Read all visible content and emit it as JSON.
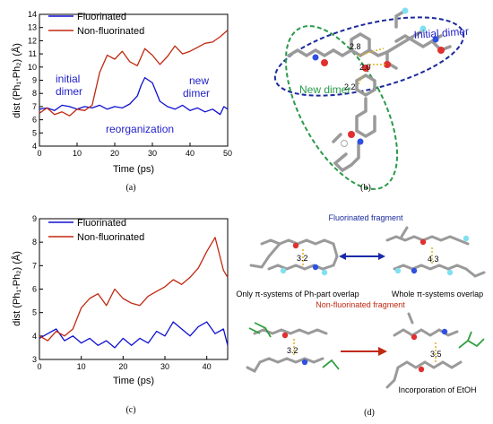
{
  "chart_data": [
    {
      "type": "line",
      "panel": "(a)",
      "xlabel": "Time (ps)",
      "ylabel": "dist (Ph₁-Ph₂) (Å)",
      "xlim": [
        0,
        50
      ],
      "ylim": [
        4,
        14
      ],
      "xticks": [
        "0",
        "10",
        "20",
        "30",
        "40",
        "50"
      ],
      "yticks": [
        "4",
        "5",
        "6",
        "7",
        "8",
        "9",
        "10",
        "11",
        "12",
        "13",
        "14"
      ],
      "legend_position": "top-left",
      "series": [
        {
          "name": "Fluorinated",
          "color": "#1010d0",
          "x": [
            0,
            2,
            4,
            6,
            8,
            10,
            12,
            14,
            16,
            18,
            20,
            22,
            24,
            26,
            27,
            28,
            30,
            32,
            34,
            36,
            38,
            40,
            42,
            44,
            46,
            48,
            49,
            50
          ],
          "y": [
            6.8,
            6.9,
            6.7,
            7.1,
            7.0,
            6.8,
            7.0,
            6.9,
            7.1,
            6.8,
            7.0,
            6.9,
            7.2,
            7.8,
            8.6,
            9.2,
            8.8,
            7.4,
            7.0,
            6.8,
            7.1,
            6.7,
            6.9,
            6.6,
            6.8,
            6.4,
            7.0,
            6.8
          ]
        },
        {
          "name": "Non-fluorinated",
          "color": "#c02810",
          "x": [
            0,
            2,
            4,
            6,
            8,
            10,
            12,
            14,
            16,
            18,
            20,
            22,
            24,
            26,
            28,
            30,
            32,
            34,
            36,
            38,
            40,
            42,
            44,
            46,
            48,
            50
          ],
          "y": [
            6.5,
            6.9,
            6.4,
            6.6,
            6.3,
            6.8,
            6.7,
            7.1,
            9.6,
            10.9,
            10.6,
            11.2,
            10.4,
            10.1,
            11.4,
            10.9,
            10.2,
            10.8,
            11.6,
            11.0,
            11.2,
            11.5,
            11.8,
            11.9,
            12.3,
            12.8
          ]
        }
      ],
      "annotations": [
        {
          "text": "initial",
          "color": "#1f1fc8"
        },
        {
          "text": "dimer",
          "color": "#1f1fc8"
        },
        {
          "text": "reorganization",
          "color": "#1f1fc8"
        },
        {
          "text": "new",
          "color": "#1f1fc8"
        },
        {
          "text": "dimer",
          "color": "#1f1fc8"
        }
      ]
    },
    {
      "type": "line",
      "panel": "(c)",
      "xlabel": "Time (ps)",
      "ylabel": "dist (Ph₁-Ph₂) (Å)",
      "xlim": [
        0,
        45
      ],
      "ylim": [
        3,
        9
      ],
      "xticks": [
        "0",
        "10",
        "20",
        "30",
        "40"
      ],
      "yticks": [
        "3",
        "4",
        "5",
        "6",
        "7",
        "8",
        "9"
      ],
      "legend_position": "top-left",
      "series": [
        {
          "name": "Fluorinated",
          "color": "#1010d0",
          "x": [
            0,
            2,
            4,
            6,
            8,
            10,
            12,
            14,
            16,
            18,
            20,
            22,
            24,
            26,
            28,
            30,
            32,
            34,
            36,
            38,
            40,
            42,
            44,
            45
          ],
          "y": [
            3.9,
            4.1,
            4.3,
            3.8,
            4.0,
            3.7,
            3.9,
            3.6,
            3.8,
            3.5,
            3.9,
            3.6,
            3.9,
            3.7,
            4.2,
            4.0,
            4.6,
            4.3,
            4.0,
            4.4,
            4.6,
            4.1,
            4.3,
            3.6
          ]
        },
        {
          "name": "Non-fluorinated",
          "color": "#c02810",
          "x": [
            0,
            2,
            4,
            6,
            8,
            10,
            12,
            14,
            16,
            18,
            20,
            22,
            24,
            26,
            28,
            30,
            32,
            34,
            36,
            38,
            40,
            42,
            44,
            45
          ],
          "y": [
            4.0,
            3.8,
            4.2,
            4.0,
            4.3,
            5.2,
            5.6,
            5.8,
            5.3,
            6.0,
            5.6,
            5.4,
            5.3,
            5.7,
            5.9,
            6.1,
            6.4,
            6.2,
            6.5,
            6.9,
            7.6,
            8.2,
            6.8,
            6.5
          ]
        }
      ]
    }
  ],
  "panel_b": {
    "label": "(b)",
    "initial_dimer": "Initial dimer",
    "new_dimer": "New dimer",
    "dist1": "2.8",
    "dist2": "2.0",
    "dist3": "2.2"
  },
  "panel_d": {
    "label": "(d)",
    "fluorinated_fragment": "Fluorinated fragment",
    "caption_left": "Only π-systems of Ph-part overlap",
    "caption_right": "Whole π-systems overlap",
    "non_fluorinated_fragment": "Non-fluorinated fragment",
    "incorporation": "Incorporation of EtOH",
    "d1": "3.2",
    "d2": "4.3",
    "d3": "3.2",
    "d4": "3.5"
  },
  "colors": {
    "fluorinated": "#1010d0",
    "non_fluorinated": "#c02810",
    "dashed_blue": "#1a2a9c",
    "dashed_green": "#2a9a4a"
  }
}
